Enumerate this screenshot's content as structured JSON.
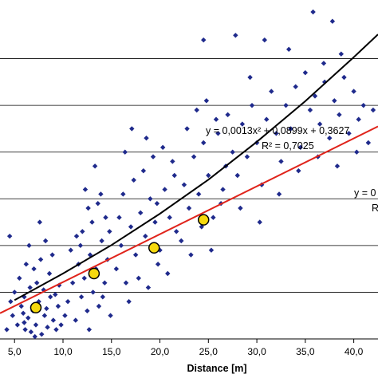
{
  "chart_data": {
    "type": "scatter",
    "title": "",
    "xlabel": "Distance [m]",
    "ylabel": "",
    "xlim": [
      3.5,
      42.5
    ],
    "ylim": [
      0,
      7
    ],
    "x_ticks": [
      5,
      10,
      15,
      20,
      25,
      30,
      35,
      40
    ],
    "x_tick_labels": [
      "5,0",
      "10,0",
      "15,0",
      "20,0",
      "25,0",
      "30,0",
      "35,0",
      "40,0"
    ],
    "y_gridlines": [
      1,
      2,
      3,
      4,
      5,
      6
    ],
    "grid": "horizontal",
    "scatter": {
      "color": "#1f2a8c",
      "marker": "diamond",
      "points": [
        [
          4.2,
          0.2
        ],
        [
          4.8,
          0.5
        ],
        [
          5.3,
          0.3
        ],
        [
          5.7,
          0.7
        ],
        [
          6.1,
          0.2
        ],
        [
          6.4,
          0.45
        ],
        [
          6.7,
          0.15
        ],
        [
          6.9,
          0.6
        ],
        [
          7.2,
          0.3
        ],
        [
          7.5,
          0.8
        ],
        [
          7.8,
          0.1
        ],
        [
          8.1,
          0.5
        ],
        [
          8.4,
          0.25
        ],
        [
          8.7,
          0.9
        ],
        [
          9.0,
          0.4
        ],
        [
          9.3,
          0.2
        ],
        [
          5.0,
          1.0
        ],
        [
          5.5,
          1.3
        ],
        [
          6.0,
          0.9
        ],
        [
          6.6,
          1.1
        ],
        [
          7.3,
          1.2
        ],
        [
          8.0,
          1.05
        ],
        [
          8.6,
          1.4
        ],
        [
          9.2,
          0.95
        ],
        [
          6.2,
          1.6
        ],
        [
          7.0,
          1.5
        ],
        [
          7.7,
          1.7
        ],
        [
          8.9,
          1.8
        ],
        [
          4.5,
          2.2
        ],
        [
          6.5,
          2.0
        ],
        [
          7.6,
          2.5
        ],
        [
          8.2,
          2.1
        ],
        [
          4.6,
          0.8
        ],
        [
          5.9,
          0.55
        ],
        [
          9.5,
          0.7
        ],
        [
          6.0,
          0.35
        ],
        [
          7.1,
          0.05
        ],
        [
          8.3,
          0.65
        ],
        [
          9.6,
          1.15
        ],
        [
          9.8,
          0.3
        ],
        [
          10.5,
          0.8
        ],
        [
          11.0,
          1.2
        ],
        [
          11.3,
          0.4
        ],
        [
          11.6,
          1.6
        ],
        [
          11.9,
          0.9
        ],
        [
          12.2,
          1.3
        ],
        [
          12.5,
          0.6
        ],
        [
          12.8,
          1.8
        ],
        [
          13.1,
          1.0
        ],
        [
          13.4,
          1.5
        ],
        [
          13.7,
          0.7
        ],
        [
          14.0,
          2.1
        ],
        [
          14.3,
          1.2
        ],
        [
          14.6,
          1.7
        ],
        [
          14.9,
          0.5
        ],
        [
          12.0,
          2.3
        ],
        [
          13.0,
          2.5
        ],
        [
          12.6,
          2.8
        ],
        [
          13.6,
          2.9
        ],
        [
          14.4,
          2.6
        ],
        [
          12.3,
          3.2
        ],
        [
          13.3,
          3.7
        ],
        [
          11.8,
          2.0
        ],
        [
          10.8,
          1.9
        ],
        [
          12.7,
          0.2
        ],
        [
          14.1,
          0.9
        ],
        [
          10.2,
          0.5
        ],
        [
          11.4,
          2.2
        ],
        [
          13.9,
          3.1
        ],
        [
          14.8,
          2.3
        ],
        [
          15.5,
          1.5
        ],
        [
          16.0,
          2.0
        ],
        [
          16.5,
          1.2
        ],
        [
          17.0,
          2.4
        ],
        [
          17.5,
          1.8
        ],
        [
          18.0,
          2.7
        ],
        [
          18.5,
          2.2
        ],
        [
          19.0,
          3.0
        ],
        [
          19.5,
          2.5
        ],
        [
          20.0,
          1.9
        ],
        [
          20.5,
          3.2
        ],
        [
          21.0,
          2.6
        ],
        [
          21.5,
          3.5
        ],
        [
          16.2,
          3.1
        ],
        [
          17.3,
          3.4
        ],
        [
          18.3,
          3.6
        ],
        [
          19.3,
          3.9
        ],
        [
          20.3,
          4.1
        ],
        [
          21.3,
          3.8
        ],
        [
          16.8,
          0.8
        ],
        [
          17.8,
          1.3
        ],
        [
          18.8,
          1.1
        ],
        [
          19.8,
          1.6
        ],
        [
          20.8,
          1.4
        ],
        [
          15.8,
          2.6
        ],
        [
          18.6,
          4.3
        ],
        [
          17.1,
          4.5
        ],
        [
          16.4,
          4.0
        ],
        [
          19.7,
          2.9
        ],
        [
          21.7,
          2.3
        ],
        [
          22.5,
          3.3
        ],
        [
          23.0,
          2.8
        ],
        [
          23.5,
          3.9
        ],
        [
          24.0,
          3.1
        ],
        [
          24.5,
          4.2
        ],
        [
          25.0,
          3.5
        ],
        [
          25.5,
          2.6
        ],
        [
          26.0,
          4.4
        ],
        [
          26.5,
          3.2
        ],
        [
          27.0,
          4.8
        ],
        [
          22.8,
          4.5
        ],
        [
          23.8,
          4.9
        ],
        [
          24.8,
          5.1
        ],
        [
          25.8,
          4.7
        ],
        [
          26.8,
          3.7
        ],
        [
          22.2,
          2.1
        ],
        [
          23.2,
          1.8
        ],
        [
          24.3,
          2.4
        ],
        [
          25.3,
          1.9
        ],
        [
          26.3,
          2.9
        ],
        [
          27.5,
          4.0
        ],
        [
          28.0,
          3.5
        ],
        [
          28.5,
          4.6
        ],
        [
          29.0,
          3.9
        ],
        [
          29.5,
          5.0
        ],
        [
          30.0,
          4.2
        ],
        [
          30.5,
          3.3
        ],
        [
          31.0,
          4.7
        ],
        [
          31.5,
          5.3
        ],
        [
          32.0,
          4.4
        ],
        [
          32.5,
          3.8
        ],
        [
          33.0,
          5.0
        ],
        [
          33.5,
          4.5
        ],
        [
          34.0,
          5.4
        ],
        [
          34.5,
          4.1
        ],
        [
          35.0,
          5.7
        ],
        [
          35.5,
          4.9
        ],
        [
          36.0,
          5.2
        ],
        [
          36.5,
          4.6
        ],
        [
          37.0,
          5.5
        ],
        [
          37.5,
          4.3
        ],
        [
          38.0,
          5.1
        ],
        [
          38.5,
          4.8
        ],
        [
          39.0,
          5.6
        ],
        [
          39.5,
          4.4
        ],
        [
          40.0,
          5.3
        ],
        [
          40.5,
          4.7
        ],
        [
          41.0,
          5.0
        ],
        [
          41.5,
          4.2
        ],
        [
          42.0,
          4.9
        ],
        [
          28.3,
          2.8
        ],
        [
          30.3,
          2.5
        ],
        [
          32.3,
          3.1
        ],
        [
          34.3,
          3.6
        ],
        [
          36.3,
          3.9
        ],
        [
          38.3,
          3.7
        ],
        [
          40.3,
          4.0
        ],
        [
          29.3,
          5.6
        ],
        [
          33.3,
          6.2
        ],
        [
          35.8,
          7.0
        ],
        [
          37.8,
          6.8
        ],
        [
          24.5,
          6.4
        ],
        [
          27.8,
          6.5
        ],
        [
          30.8,
          6.4
        ],
        [
          36.9,
          5.9
        ],
        [
          38.7,
          6.1
        ]
      ]
    },
    "series": [
      {
        "name": "",
        "kind": "fit",
        "color": "#e0241b",
        "x": [
          3.5,
          42.5
        ],
        "y": [
          0.55,
          4.55
        ]
      },
      {
        "name": "",
        "kind": "fit",
        "color": "#000000",
        "x": [
          5,
          10,
          15,
          20,
          25,
          30,
          35,
          40,
          42.5
        ],
        "y": [
          0.83,
          1.4,
          2.01,
          2.68,
          3.41,
          4.22,
          5.09,
          6.03,
          6.52
        ]
      }
    ],
    "highlight_points": [
      [
        7.2,
        0.67
      ],
      [
        13.2,
        1.4
      ],
      [
        19.4,
        1.95
      ],
      [
        24.5,
        2.55
      ]
    ],
    "annotations": [
      {
        "id": "eq_quad",
        "text": "y = 0,0013x² + 0,0899x + 0,3627"
      },
      {
        "id": "r2_quad",
        "text": "R² = 0,7025"
      },
      {
        "id": "eq_lin",
        "text": "y = 0"
      },
      {
        "id": "r2_lin",
        "text": "R"
      }
    ]
  }
}
